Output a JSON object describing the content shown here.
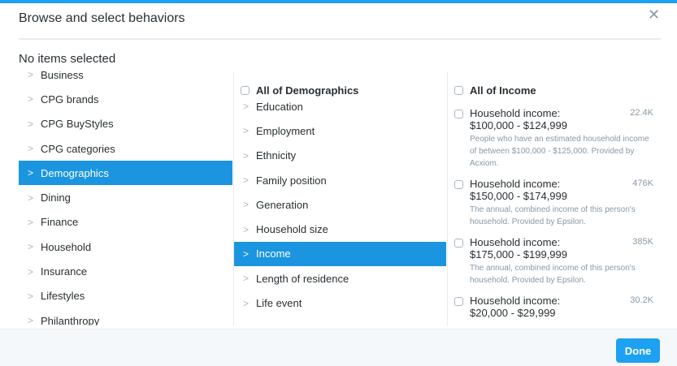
{
  "header": {
    "title": "Browse and select behaviors",
    "close_icon": "close-icon"
  },
  "status": "No items selected",
  "categories": [
    "Business",
    "CPG brands",
    "CPG BuyStyles",
    "CPG categories",
    "Demographics",
    "Dining",
    "Finance",
    "Household",
    "Insurance",
    "Lifestyles",
    "Philanthropy"
  ],
  "selected_category": "Demographics",
  "subcategories": {
    "all_label": "All of Demographics",
    "items": [
      "Education",
      "Employment",
      "Ethnicity",
      "Family position",
      "Generation",
      "Household size",
      "Income",
      "Length of residence",
      "Life event"
    ],
    "selected": "Income"
  },
  "options": {
    "all_label": "All of Income",
    "items": [
      {
        "title": "Household income:",
        "range": "$100,000 - $124,999",
        "count": "22.4K",
        "desc": "People who have an estimated household income of between $100,000 - $125,000. Provided by Acxiom."
      },
      {
        "title": "Household income:",
        "range": "$150,000 - $174,999",
        "count": "476K",
        "desc": "The annual, combined income of this person's household. Provided by Epsilon."
      },
      {
        "title": "Household income:",
        "range": "$175,000 - $199,999",
        "count": "385K",
        "desc": "The annual, combined income of this person's household. Provided by Epsilon."
      },
      {
        "title": "Household income:",
        "range": "$20,000 - $29,999",
        "count": "30.2K",
        "desc": ""
      }
    ]
  },
  "footer": {
    "done_label": "Done"
  },
  "colors": {
    "accent": "#1da1f2",
    "selected": "#1b95e0"
  }
}
